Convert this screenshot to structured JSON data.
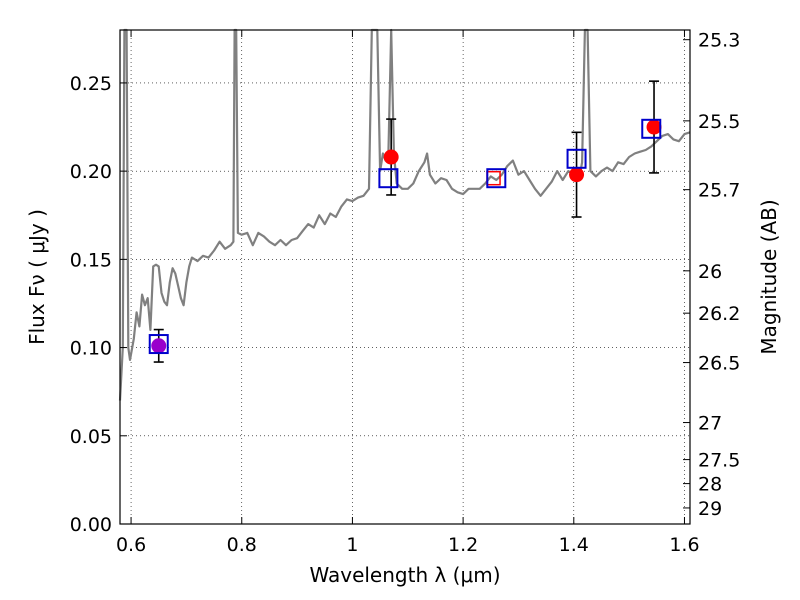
{
  "chart_data": {
    "type": "scatter",
    "xlabel": "Wavelength  λ (μm)",
    "ylabel": "Flux  Fν  ( μJy )",
    "ylabel_right": "Magnitude (AB)",
    "xlim": [
      0.58,
      1.61
    ],
    "ylim": [
      0.0,
      0.28
    ],
    "grid": true,
    "x_ticks": [
      {
        "value": 0.6,
        "label": "0.6"
      },
      {
        "value": 0.8,
        "label": "0.8"
      },
      {
        "value": 1.0,
        "label": "1"
      },
      {
        "value": 1.2,
        "label": "1.2"
      },
      {
        "value": 1.4,
        "label": "1.4"
      },
      {
        "value": 1.6,
        "label": "1.6"
      }
    ],
    "y_ticks": [
      {
        "value": 0.0,
        "label": "0.00"
      },
      {
        "value": 0.05,
        "label": "0.05"
      },
      {
        "value": 0.1,
        "label": "0.10"
      },
      {
        "value": 0.15,
        "label": "0.15"
      },
      {
        "value": 0.2,
        "label": "0.20"
      },
      {
        "value": 0.25,
        "label": "0.25"
      }
    ],
    "y2_ticks": [
      {
        "flux": 0.2745,
        "label": "25.3"
      },
      {
        "flux": 0.2285,
        "label": "25.5"
      },
      {
        "flux": 0.1895,
        "label": "25.7"
      },
      {
        "flux": 0.1435,
        "label": "26"
      },
      {
        "flux": 0.1195,
        "label": "26.2"
      },
      {
        "flux": 0.0915,
        "label": "26.5"
      },
      {
        "flux": 0.0575,
        "label": "27"
      },
      {
        "flux": 0.0365,
        "label": "27.5"
      },
      {
        "flux": 0.0229,
        "label": "28"
      },
      {
        "flux": 0.0091,
        "label": "29"
      }
    ],
    "series": [
      {
        "kind": "model-spectrum",
        "color": "#808080",
        "points": [
          [
            0.58,
            0.07
          ],
          [
            0.585,
            0.1
          ],
          [
            0.588,
            0.28
          ],
          [
            0.592,
            0.28
          ],
          [
            0.595,
            0.1
          ],
          [
            0.598,
            0.093
          ],
          [
            0.605,
            0.105
          ],
          [
            0.61,
            0.12
          ],
          [
            0.615,
            0.112
          ],
          [
            0.62,
            0.13
          ],
          [
            0.625,
            0.124
          ],
          [
            0.63,
            0.128
          ],
          [
            0.635,
            0.11
          ],
          [
            0.64,
            0.146
          ],
          [
            0.645,
            0.147
          ],
          [
            0.65,
            0.146
          ],
          [
            0.655,
            0.131
          ],
          [
            0.66,
            0.126
          ],
          [
            0.665,
            0.124
          ],
          [
            0.67,
            0.137
          ],
          [
            0.675,
            0.145
          ],
          [
            0.68,
            0.142
          ],
          [
            0.685,
            0.135
          ],
          [
            0.69,
            0.128
          ],
          [
            0.695,
            0.124
          ],
          [
            0.7,
            0.137
          ],
          [
            0.705,
            0.146
          ],
          [
            0.71,
            0.151
          ],
          [
            0.72,
            0.149
          ],
          [
            0.73,
            0.152
          ],
          [
            0.74,
            0.151
          ],
          [
            0.75,
            0.155
          ],
          [
            0.76,
            0.16
          ],
          [
            0.77,
            0.156
          ],
          [
            0.78,
            0.158
          ],
          [
            0.785,
            0.16
          ],
          [
            0.787,
            0.28
          ],
          [
            0.79,
            0.28
          ],
          [
            0.793,
            0.165
          ],
          [
            0.8,
            0.164
          ],
          [
            0.81,
            0.165
          ],
          [
            0.82,
            0.158
          ],
          [
            0.83,
            0.165
          ],
          [
            0.84,
            0.163
          ],
          [
            0.85,
            0.16
          ],
          [
            0.86,
            0.158
          ],
          [
            0.87,
            0.161
          ],
          [
            0.88,
            0.158
          ],
          [
            0.89,
            0.161
          ],
          [
            0.9,
            0.162
          ],
          [
            0.91,
            0.166
          ],
          [
            0.92,
            0.17
          ],
          [
            0.93,
            0.168
          ],
          [
            0.94,
            0.175
          ],
          [
            0.95,
            0.17
          ],
          [
            0.96,
            0.176
          ],
          [
            0.97,
            0.174
          ],
          [
            0.98,
            0.18
          ],
          [
            0.99,
            0.184
          ],
          [
            1.0,
            0.183
          ],
          [
            1.01,
            0.185
          ],
          [
            1.02,
            0.186
          ],
          [
            1.03,
            0.19
          ],
          [
            1.035,
            0.28
          ],
          [
            1.045,
            0.28
          ],
          [
            1.05,
            0.2
          ],
          [
            1.055,
            0.21
          ],
          [
            1.06,
            0.206
          ],
          [
            1.065,
            0.21
          ],
          [
            1.07,
            0.28
          ],
          [
            1.075,
            0.21
          ],
          [
            1.08,
            0.193
          ],
          [
            1.09,
            0.19
          ],
          [
            1.1,
            0.19
          ],
          [
            1.11,
            0.193
          ],
          [
            1.12,
            0.2
          ],
          [
            1.13,
            0.205
          ],
          [
            1.135,
            0.21
          ],
          [
            1.14,
            0.198
          ],
          [
            1.15,
            0.193
          ],
          [
            1.16,
            0.196
          ],
          [
            1.17,
            0.195
          ],
          [
            1.18,
            0.19
          ],
          [
            1.19,
            0.188
          ],
          [
            1.2,
            0.187
          ],
          [
            1.21,
            0.19
          ],
          [
            1.22,
            0.19
          ],
          [
            1.23,
            0.19
          ],
          [
            1.24,
            0.193
          ],
          [
            1.25,
            0.197
          ],
          [
            1.26,
            0.195
          ],
          [
            1.27,
            0.198
          ],
          [
            1.28,
            0.203
          ],
          [
            1.29,
            0.206
          ],
          [
            1.3,
            0.198
          ],
          [
            1.31,
            0.2
          ],
          [
            1.32,
            0.195
          ],
          [
            1.33,
            0.19
          ],
          [
            1.34,
            0.186
          ],
          [
            1.35,
            0.19
          ],
          [
            1.36,
            0.194
          ],
          [
            1.37,
            0.2
          ],
          [
            1.38,
            0.195
          ],
          [
            1.39,
            0.2
          ],
          [
            1.4,
            0.198
          ],
          [
            1.405,
            0.202
          ],
          [
            1.41,
            0.196
          ],
          [
            1.415,
            0.205
          ],
          [
            1.42,
            0.28
          ],
          [
            1.425,
            0.28
          ],
          [
            1.43,
            0.2
          ],
          [
            1.44,
            0.197
          ],
          [
            1.45,
            0.2
          ],
          [
            1.46,
            0.202
          ],
          [
            1.47,
            0.2
          ],
          [
            1.48,
            0.205
          ],
          [
            1.49,
            0.204
          ],
          [
            1.5,
            0.208
          ],
          [
            1.51,
            0.21
          ],
          [
            1.52,
            0.211
          ],
          [
            1.53,
            0.212
          ],
          [
            1.54,
            0.214
          ],
          [
            1.55,
            0.217
          ],
          [
            1.56,
            0.22
          ],
          [
            1.57,
            0.221
          ],
          [
            1.58,
            0.218
          ],
          [
            1.59,
            0.217
          ],
          [
            1.6,
            0.221
          ],
          [
            1.61,
            0.222
          ]
        ]
      },
      {
        "kind": "model-photometry",
        "marker": "open-square",
        "color": "#0000cc",
        "points": [
          [
            0.65,
            0.102
          ],
          [
            1.065,
            0.196
          ],
          [
            1.26,
            0.196
          ],
          [
            1.405,
            0.207
          ],
          [
            1.54,
            0.224
          ]
        ]
      },
      {
        "kind": "observed-photometry",
        "marker": "filled-circle",
        "color": "#ff0000",
        "points": [
          {
            "x": 0.65,
            "y": 0.101,
            "yerr": 0.0092,
            "color": "#9900cc"
          },
          {
            "x": 1.07,
            "y": 0.208,
            "yerr": 0.0215
          },
          {
            "x": 1.255,
            "y": 0.196,
            "yerr": null,
            "outline_only": true
          },
          {
            "x": 1.405,
            "y": 0.198,
            "yerr": 0.024
          },
          {
            "x": 1.545,
            "y": 0.225,
            "yerr": 0.026
          }
        ]
      }
    ]
  }
}
